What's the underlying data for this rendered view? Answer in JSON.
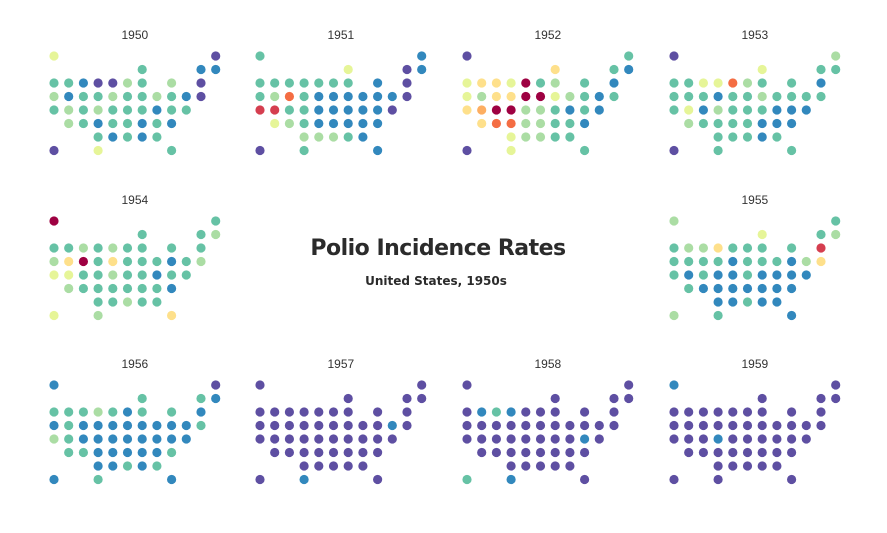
{
  "chart_data": {
    "type": "grid-map",
    "title": "Polio Incidence Rates",
    "subtitle": "United States, 1950s",
    "palette": [
      "#5e4fa2",
      "#3288bd",
      "#66c2a5",
      "#abdda4",
      "#e6f598",
      "#fee08b",
      "#fdae61",
      "#f46d43",
      "#d53e4f",
      "#9e0142"
    ],
    "states": [
      "AK",
      "ME",
      "WI",
      "VT",
      "NH",
      "WA",
      "ID",
      "MT",
      "ND",
      "MN",
      "IL",
      "MI",
      "NY",
      "MA",
      "OR",
      "NV",
      "WY",
      "SD",
      "IA",
      "IN",
      "OH",
      "PA",
      "NJ",
      "CT",
      "RI",
      "CA",
      "UT",
      "CO",
      "NE",
      "MO",
      "KY",
      "WV",
      "VA",
      "MD",
      "DE",
      "AZ",
      "NM",
      "KS",
      "AR",
      "TN",
      "NC",
      "SC",
      "DC",
      "OK",
      "LA",
      "MS",
      "AL",
      "GA",
      "HI",
      "TX",
      "FL"
    ],
    "panels": [
      {
        "year": "1950",
        "levels": [
          4,
          0,
          2,
          1,
          1,
          2,
          2,
          1,
          0,
          0,
          3,
          2,
          3,
          0,
          3,
          1,
          2,
          2,
          3,
          2,
          2,
          3,
          2,
          1,
          0,
          2,
          3,
          2,
          3,
          2,
          2,
          2,
          1,
          2,
          2,
          3,
          2,
          1,
          2,
          2,
          1,
          2,
          1,
          2,
          1,
          2,
          1,
          2,
          0,
          4,
          2
        ]
      },
      {
        "year": "1951",
        "levels": [
          2,
          1,
          4,
          0,
          1,
          2,
          2,
          2,
          2,
          2,
          2,
          2,
          1,
          0,
          2,
          3,
          7,
          2,
          1,
          1,
          1,
          1,
          1,
          1,
          0,
          8,
          8,
          2,
          2,
          1,
          1,
          1,
          1,
          1,
          0,
          4,
          3,
          2,
          1,
          1,
          1,
          1,
          1,
          3,
          3,
          3,
          2,
          1,
          0,
          2,
          1
        ]
      },
      {
        "year": "1952",
        "levels": [
          0,
          2,
          5,
          2,
          1,
          4,
          5,
          5,
          4,
          9,
          2,
          3,
          2,
          1,
          4,
          3,
          5,
          5,
          9,
          9,
          4,
          3,
          2,
          1,
          2,
          5,
          6,
          9,
          9,
          3,
          3,
          2,
          1,
          2,
          1,
          5,
          7,
          7,
          3,
          3,
          2,
          2,
          1,
          4,
          3,
          3,
          2,
          2,
          0,
          4,
          2
        ]
      },
      {
        "year": "1953",
        "levels": [
          0,
          3,
          4,
          2,
          2,
          2,
          2,
          4,
          4,
          7,
          3,
          2,
          2,
          1,
          2,
          2,
          2,
          1,
          2,
          2,
          3,
          2,
          2,
          2,
          2,
          2,
          4,
          1,
          3,
          2,
          2,
          2,
          1,
          1,
          1,
          3,
          2,
          2,
          2,
          2,
          1,
          1,
          1,
          2,
          2,
          2,
          1,
          2,
          0,
          2,
          2
        ]
      },
      {
        "year": "1954",
        "levels": [
          9,
          2,
          2,
          2,
          3,
          2,
          2,
          3,
          2,
          3,
          2,
          2,
          2,
          2,
          3,
          5,
          9,
          2,
          5,
          2,
          2,
          2,
          1,
          2,
          3,
          4,
          4,
          2,
          2,
          3,
          2,
          2,
          1,
          2,
          2,
          3,
          2,
          2,
          2,
          2,
          2,
          2,
          1,
          2,
          2,
          3,
          2,
          2,
          4,
          3,
          5
        ]
      },
      {
        "year": "1955",
        "levels": [
          3,
          2,
          4,
          2,
          3,
          2,
          3,
          3,
          5,
          2,
          2,
          2,
          2,
          8,
          2,
          2,
          2,
          2,
          1,
          2,
          2,
          2,
          1,
          3,
          5,
          2,
          1,
          2,
          1,
          1,
          2,
          1,
          1,
          1,
          1,
          2,
          1,
          1,
          1,
          1,
          1,
          1,
          1,
          1,
          1,
          2,
          1,
          1,
          3,
          2,
          1
        ]
      },
      {
        "year": "1956",
        "levels": [
          1,
          0,
          2,
          2,
          1,
          2,
          2,
          2,
          3,
          2,
          1,
          2,
          2,
          1,
          1,
          2,
          1,
          1,
          1,
          1,
          1,
          1,
          1,
          1,
          2,
          3,
          2,
          1,
          1,
          1,
          1,
          1,
          1,
          1,
          1,
          2,
          2,
          1,
          1,
          1,
          1,
          1,
          2,
          1,
          1,
          2,
          1,
          2,
          1,
          2,
          1
        ]
      },
      {
        "year": "1957",
        "levels": [
          0,
          0,
          0,
          0,
          0,
          0,
          0,
          0,
          0,
          0,
          0,
          0,
          0,
          0,
          0,
          0,
          0,
          0,
          0,
          0,
          0,
          0,
          0,
          1,
          0,
          0,
          0,
          0,
          0,
          0,
          0,
          0,
          0,
          0,
          0,
          0,
          0,
          0,
          0,
          0,
          0,
          0,
          0,
          0,
          0,
          0,
          0,
          0,
          0,
          1,
          0
        ]
      },
      {
        "year": "1958",
        "levels": [
          0,
          0,
          0,
          0,
          0,
          0,
          1,
          2,
          1,
          0,
          0,
          0,
          0,
          0,
          0,
          0,
          0,
          0,
          0,
          0,
          0,
          0,
          0,
          0,
          0,
          0,
          0,
          0,
          0,
          0,
          0,
          0,
          0,
          1,
          0,
          0,
          0,
          0,
          0,
          0,
          0,
          0,
          0,
          0,
          0,
          0,
          0,
          0,
          2,
          1,
          0
        ]
      },
      {
        "year": "1959",
        "levels": [
          1,
          0,
          0,
          0,
          0,
          0,
          0,
          0,
          0,
          0,
          0,
          0,
          0,
          0,
          0,
          0,
          0,
          0,
          0,
          0,
          0,
          0,
          0,
          0,
          0,
          0,
          0,
          0,
          1,
          0,
          0,
          0,
          0,
          0,
          0,
          0,
          0,
          0,
          0,
          0,
          0,
          0,
          0,
          0,
          0,
          0,
          0,
          0,
          0,
          0,
          0
        ]
      }
    ]
  }
}
